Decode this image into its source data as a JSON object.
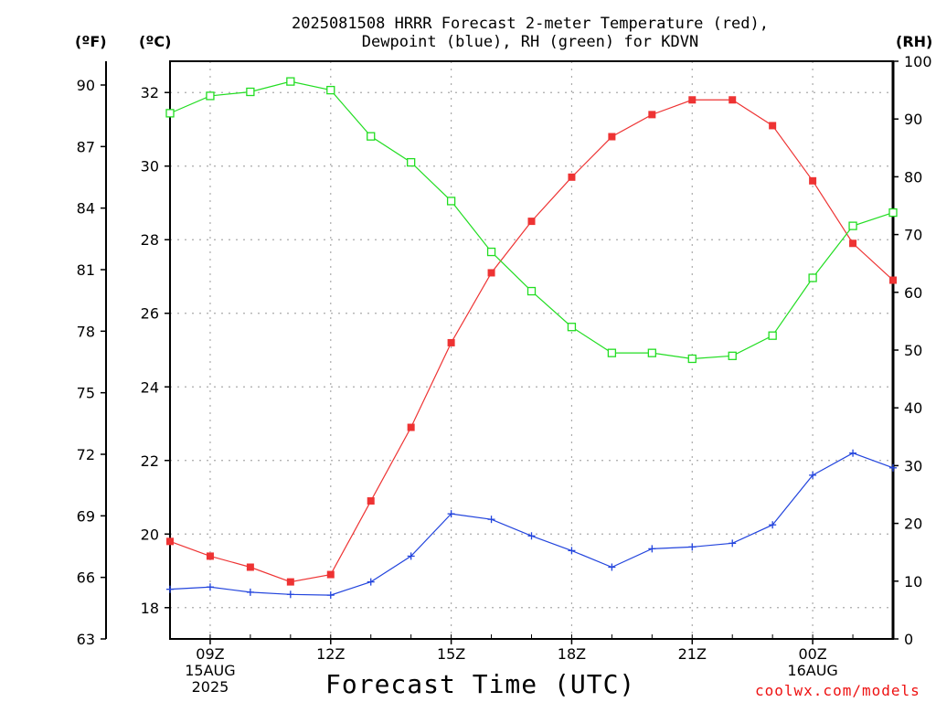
{
  "title_line1": "2025081508 HRRR Forecast 2-meter Temperature (red),",
  "title_line2": "Dewpoint (blue), RH (green) for KDVN",
  "unit_f": "(ºF)",
  "unit_c": "(ºC)",
  "unit_rh": "(RH)",
  "xlabel": "Forecast Time (UTC)",
  "credit": "coolwx.com/models",
  "colors": {
    "temperature": "#ee3333",
    "dewpoint": "#2244dd",
    "rh": "#22dd22",
    "grid": "#aaaaaa"
  },
  "chart_data": {
    "type": "line",
    "x": [
      "08Z",
      "09Z",
      "10Z",
      "11Z",
      "12Z",
      "13Z",
      "14Z",
      "15Z",
      "16Z",
      "17Z",
      "18Z",
      "19Z",
      "20Z",
      "21Z",
      "22Z",
      "23Z",
      "00Z",
      "01Z",
      "02Z"
    ],
    "x_tick_labels": [
      {
        "x": "09Z",
        "lines": [
          "09Z",
          "15AUG",
          "2025"
        ]
      },
      {
        "x": "12Z",
        "lines": [
          "12Z"
        ]
      },
      {
        "x": "15Z",
        "lines": [
          "15Z"
        ]
      },
      {
        "x": "18Z",
        "lines": [
          "18Z"
        ]
      },
      {
        "x": "21Z",
        "lines": [
          "21Z"
        ]
      },
      {
        "x": "00Z",
        "lines": [
          "00Z",
          "16AUG"
        ]
      }
    ],
    "y_left_f": {
      "label": "(ºF)",
      "ticks": [
        63,
        66,
        69,
        72,
        75,
        78,
        81,
        84,
        87,
        90
      ]
    },
    "y_left_c": {
      "label": "(ºC)",
      "range": [
        17.15,
        32.85
      ],
      "ticks": [
        18,
        20,
        22,
        24,
        26,
        28,
        30,
        32
      ]
    },
    "y_right_rh": {
      "label": "(RH)",
      "range": [
        0,
        100
      ],
      "ticks": [
        0,
        10,
        20,
        30,
        40,
        50,
        60,
        70,
        80,
        90,
        100
      ]
    },
    "grid": true,
    "series": [
      {
        "name": "Temperature",
        "axis": "c",
        "marker": "filled-square",
        "values": [
          19.8,
          19.4,
          19.1,
          18.7,
          18.9,
          20.9,
          22.9,
          25.2,
          27.1,
          28.5,
          29.7,
          30.8,
          31.4,
          31.8,
          31.8,
          31.1,
          29.6,
          27.9,
          26.9
        ]
      },
      {
        "name": "Dewpoint",
        "axis": "c",
        "marker": "plus",
        "values": [
          18.5,
          18.56,
          18.42,
          18.36,
          18.34,
          18.7,
          19.4,
          20.55,
          20.4,
          19.95,
          19.55,
          19.1,
          19.6,
          19.65,
          19.75,
          20.25,
          21.6,
          22.2,
          21.8
        ]
      },
      {
        "name": "RH",
        "axis": "rh",
        "marker": "open-square",
        "values": [
          91,
          94,
          94.7,
          96.5,
          95,
          87,
          82.5,
          75.8,
          67,
          60.2,
          54,
          49.5,
          49.5,
          48.5,
          49,
          52.5,
          62.5,
          71.5,
          73.8
        ]
      }
    ]
  }
}
